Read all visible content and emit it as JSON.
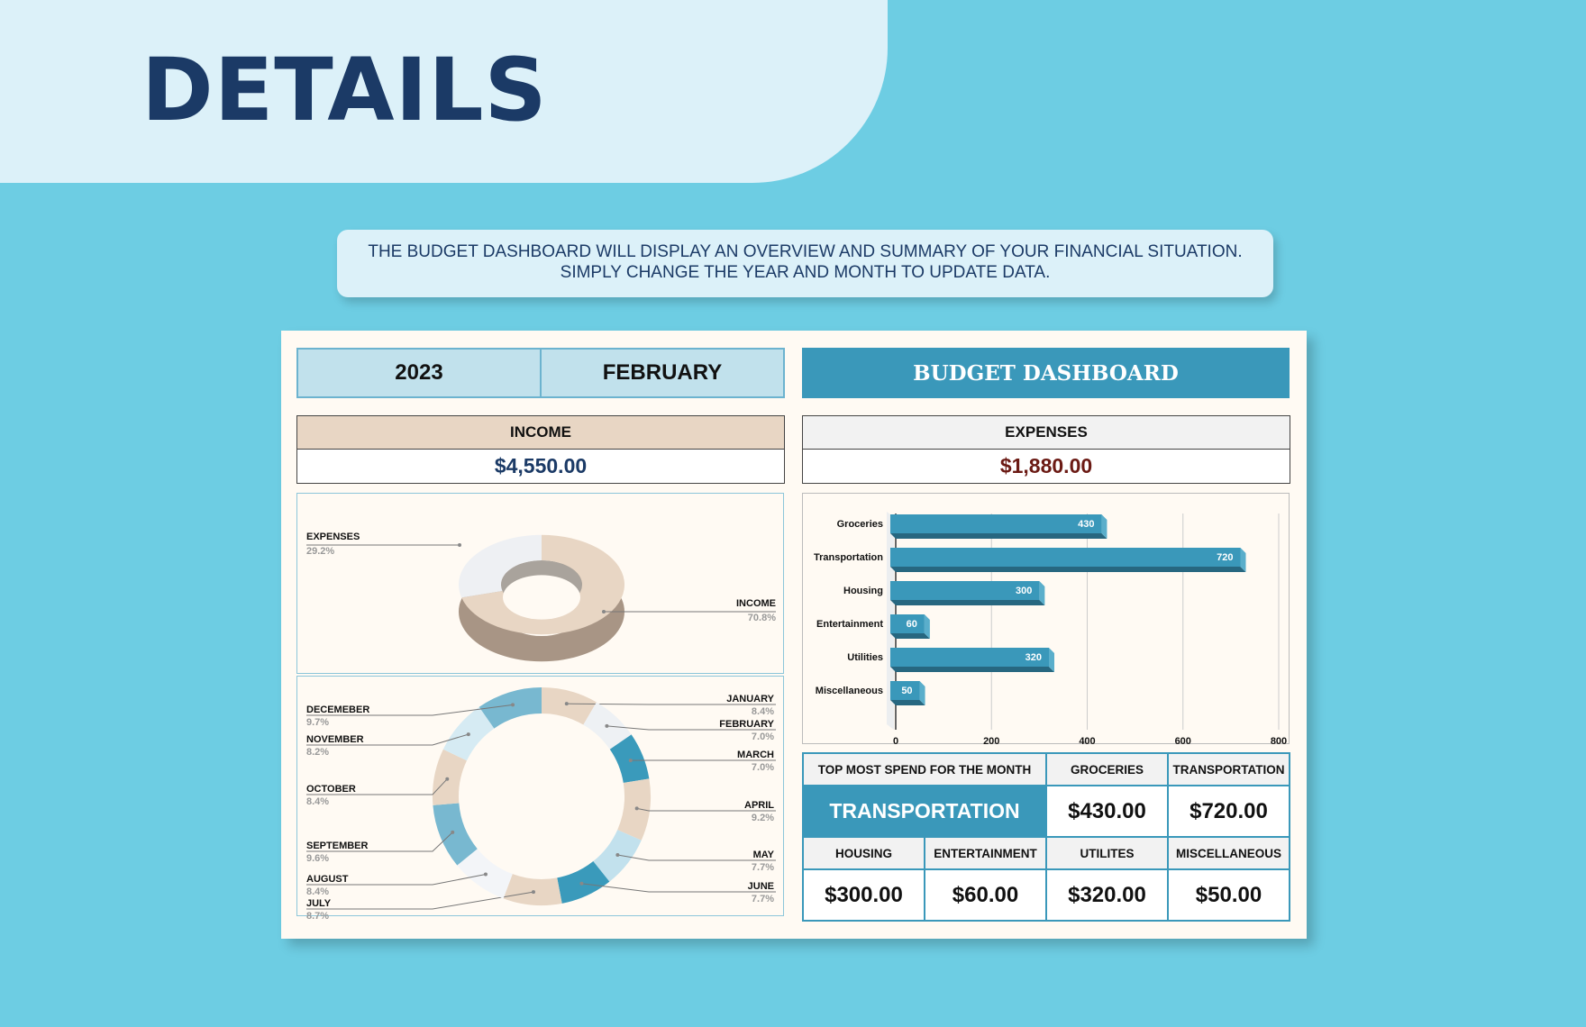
{
  "page_title": "DETAILS",
  "banner": {
    "line1": "THE BUDGET DASHBOARD WILL DISPLAY AN OVERVIEW AND SUMMARY OF YOUR FINANCIAL SITUATION.",
    "line2": "SIMPLY CHANGE THE YEAR AND MONTH TO UPDATE DATA."
  },
  "dashboard": {
    "year": "2023",
    "month": "FEBRUARY",
    "title": "BUDGET DASHBOARD",
    "income_label": "INCOME",
    "income_value": "$4,550.00",
    "expenses_label": "EXPENSES",
    "expenses_value": "$1,880.00"
  },
  "summary_table": {
    "top_label": "TOP MOST SPEND FOR THE MONTH",
    "top_value": "TRANSPORTATION",
    "groceries_label": "GROCERIES",
    "groceries_value": "$430.00",
    "transportation_label": "TRANSPORTATION",
    "transportation_value": "$720.00",
    "housing_label": "HOUSING",
    "housing_value": "$300.00",
    "entertainment_label": "ENTERTAINMENT",
    "entertainment_value": "$60.00",
    "utilities_label": "UTILITES",
    "utilities_value": "$320.00",
    "misc_label": "MISCELLANEOUS",
    "misc_value": "$50.00"
  },
  "colors": {
    "accent": "#3a98ba",
    "navy": "#1b3a66",
    "income": "#1b3a66",
    "expenses": "#6b1a14",
    "beige": "#e8d6c4"
  },
  "chart_data": [
    {
      "type": "pie",
      "style": "3d-donut",
      "slices": [
        {
          "label": "INCOME",
          "value": 70.8,
          "pct": "70.8%",
          "color": "#e8d6c4"
        },
        {
          "label": "EXPENSES",
          "value": 29.2,
          "pct": "29.2%",
          "color": "#eef0f3"
        }
      ]
    },
    {
      "type": "pie",
      "style": "donut",
      "slices": [
        {
          "label": "JANUARY",
          "value": 8.4,
          "pct": "8.4%",
          "color": "#e8d6c4"
        },
        {
          "label": "FEBRUARY",
          "value": 7.0,
          "pct": "7.0%",
          "color": "#eef1f4"
        },
        {
          "label": "MARCH",
          "value": 7.0,
          "pct": "7.0%",
          "color": "#3a9abb"
        },
        {
          "label": "APRIL",
          "value": 9.2,
          "pct": "9.2%",
          "color": "#e8d6c4"
        },
        {
          "label": "MAY",
          "value": 7.7,
          "pct": "7.7%",
          "color": "#c2e1ed"
        },
        {
          "label": "JUNE",
          "value": 7.7,
          "pct": "7.7%",
          "color": "#3a9abb"
        },
        {
          "label": "JULY",
          "value": 8.7,
          "pct": "8.7%",
          "color": "#e8d6c4"
        },
        {
          "label": "AUGUST",
          "value": 8.4,
          "pct": "8.4%",
          "color": "#f3f5f8"
        },
        {
          "label": "SEPTEMBER",
          "value": 9.6,
          "pct": "9.6%",
          "color": "#78b8d0"
        },
        {
          "label": "OCTOBER",
          "value": 8.4,
          "pct": "8.4%",
          "color": "#e8d6c4"
        },
        {
          "label": "NOVEMBER",
          "value": 8.2,
          "pct": "8.2%",
          "color": "#d6ebf3"
        },
        {
          "label": "DECEMEBER",
          "value": 9.7,
          "pct": "9.7%",
          "color": "#78b8d0"
        }
      ]
    },
    {
      "type": "bar",
      "orientation": "horizontal",
      "style": "3d",
      "categories": [
        "Groceries",
        "Transportation",
        "Housing",
        "Entertainment",
        "Utilities",
        "Miscellaneous"
      ],
      "values": [
        430,
        720,
        300,
        60,
        320,
        50
      ],
      "value_labels": [
        "430",
        "720",
        "300",
        "60",
        "320",
        "50"
      ],
      "xlim": [
        0,
        800
      ],
      "xticks": [
        "0",
        "200",
        "400",
        "600",
        "800"
      ],
      "grid": true,
      "color": "#3a98ba"
    }
  ]
}
